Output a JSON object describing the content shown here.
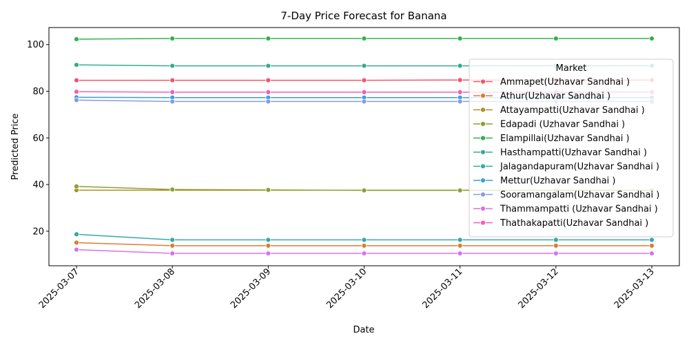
{
  "chart_data": {
    "type": "line",
    "title": "7-Day Price Forecast for Banana",
    "xlabel": "Date",
    "ylabel": "Predicted Price",
    "x": [
      "2025-03-07",
      "2025-03-08",
      "2025-03-09",
      "2025-03-10",
      "2025-03-11",
      "2025-03-12",
      "2025-03-13"
    ],
    "ylim": [
      5.2,
      107.3
    ],
    "yticks": [
      20,
      40,
      60,
      80,
      100
    ],
    "grid": false,
    "legend": {
      "title": "Market",
      "placement": "right"
    },
    "series": [
      {
        "name": "Ammapet(Uzhavar Sandhai )",
        "color": "#f0566d",
        "values": [
          84.7,
          84.7,
          84.7,
          84.7,
          84.8,
          84.8,
          84.8
        ]
      },
      {
        "name": "Athur(Uzhavar Sandhai )",
        "color": "#de7c32",
        "values": [
          15.1,
          13.8,
          13.8,
          13.8,
          13.8,
          13.8,
          13.8
        ]
      },
      {
        "name": "Attayampatti(Uzhavar Sandhai )",
        "color": "#ad9124",
        "values": [
          37.6,
          37.6,
          37.6,
          37.6,
          37.6,
          37.6,
          37.6
        ]
      },
      {
        "name": "Edapadi (Uzhavar Sandhai )",
        "color": "#8ba130",
        "values": [
          39.2,
          37.9,
          37.7,
          37.5,
          37.5,
          37.5,
          37.5
        ]
      },
      {
        "name": "Elampillai(Uzhavar Sandhai )",
        "color": "#33b04d",
        "values": [
          102.3,
          102.6,
          102.6,
          102.6,
          102.6,
          102.6,
          102.6
        ]
      },
      {
        "name": "Hasthampatti(Uzhavar Sandhai )",
        "color": "#35ab8f",
        "values": [
          91.3,
          90.9,
          90.9,
          90.9,
          90.9,
          90.9,
          90.9
        ]
      },
      {
        "name": "Jalagandapuram(Uzhavar Sandhai )",
        "color": "#37a8a8",
        "values": [
          18.7,
          16.3,
          16.3,
          16.3,
          16.3,
          16.3,
          16.3
        ]
      },
      {
        "name": "Mettur(Uzhavar Sandhai )",
        "color": "#3aa1d0",
        "values": [
          77.4,
          77.3,
          77.3,
          77.3,
          77.3,
          77.3,
          77.3
        ]
      },
      {
        "name": "Sooramangalam(Uzhavar Sandhai )",
        "color": "#8a98ea",
        "values": [
          76.2,
          75.6,
          75.6,
          75.6,
          75.6,
          75.6,
          75.6
        ]
      },
      {
        "name": "Thammampatti (Uzhavar Sandhai )",
        "color": "#d672ea",
        "values": [
          12.1,
          10.5,
          10.5,
          10.5,
          10.5,
          10.5,
          10.5
        ]
      },
      {
        "name": "Thathakapatti(Uzhavar Sandhai )",
        "color": "#f15fb6",
        "values": [
          79.8,
          79.6,
          79.6,
          79.6,
          79.6,
          79.6,
          79.6
        ]
      }
    ]
  }
}
